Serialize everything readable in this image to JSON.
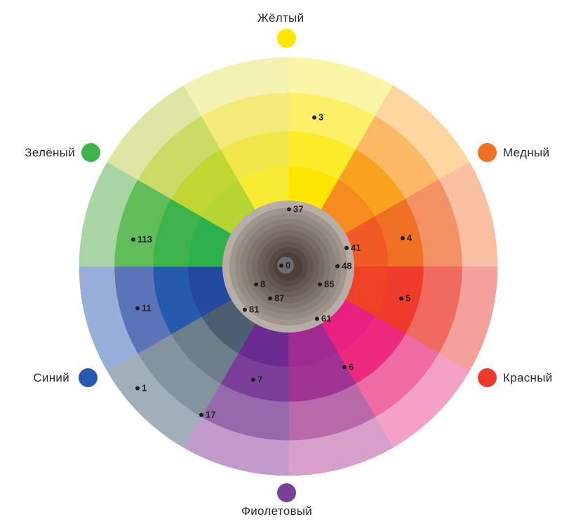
{
  "color_names": {
    "yellow": "Жёлтый",
    "copper": "Медный",
    "green": "Зелёный",
    "blue": "Синий",
    "red": "Красный",
    "violet": "Фиолетовый"
  },
  "swatch_colors": {
    "yellow": "#FFE600",
    "copper": "#F07124",
    "green": "#3CB44B",
    "blue": "#255AAE",
    "red": "#EE3B2B",
    "violet": "#7A3F98"
  },
  "segments": [
    [
      "#FFE600",
      "#FCEC2A",
      "#FBF068",
      "#FBF5A6"
    ],
    [
      "#F68B1F",
      "#F9A21F",
      "#FBB865",
      "#FDD6A0"
    ],
    [
      "#F15A24",
      "#F07124",
      "#F49265",
      "#F9C0A2"
    ],
    [
      "#EF4123",
      "#EE3B2B",
      "#F06A5F",
      "#F4A19B"
    ],
    [
      "#EA2180",
      "#EE2A7E",
      "#EF6BA4",
      "#F3A1C4"
    ],
    [
      "#9F2B90",
      "#A03492",
      "#B86AAA",
      "#D7A0CB"
    ],
    [
      "#6A2C91",
      "#7A3F98",
      "#9569AC",
      "#C29ACB"
    ],
    [
      "#4C5F70",
      "#6C7E89",
      "#8394A0",
      "#A0AFBA"
    ],
    [
      "#2349A0",
      "#255AAE",
      "#5B73B9",
      "#97AEDB"
    ],
    [
      "#2EB04C",
      "#3CB44B",
      "#61BC5A",
      "#A8D5A3"
    ],
    [
      "#B7D531",
      "#C2D633",
      "#CBDB66",
      "#DEE6A3"
    ],
    [
      "#F7EC33",
      "#F1E74A",
      "#F2EB7A",
      "#F3F2B0"
    ]
  ],
  "core_colors": {
    "rim": "#B7AEA7",
    "outer": "#A0968E",
    "inner": "#4E4038",
    "center": "#6E6B74"
  },
  "markers": [
    "3",
    "37",
    "41",
    "48",
    "0",
    "4",
    "5",
    "85",
    "8",
    "87",
    "81",
    "61",
    "6",
    "11",
    "1",
    "7",
    "17",
    "113"
  ]
}
